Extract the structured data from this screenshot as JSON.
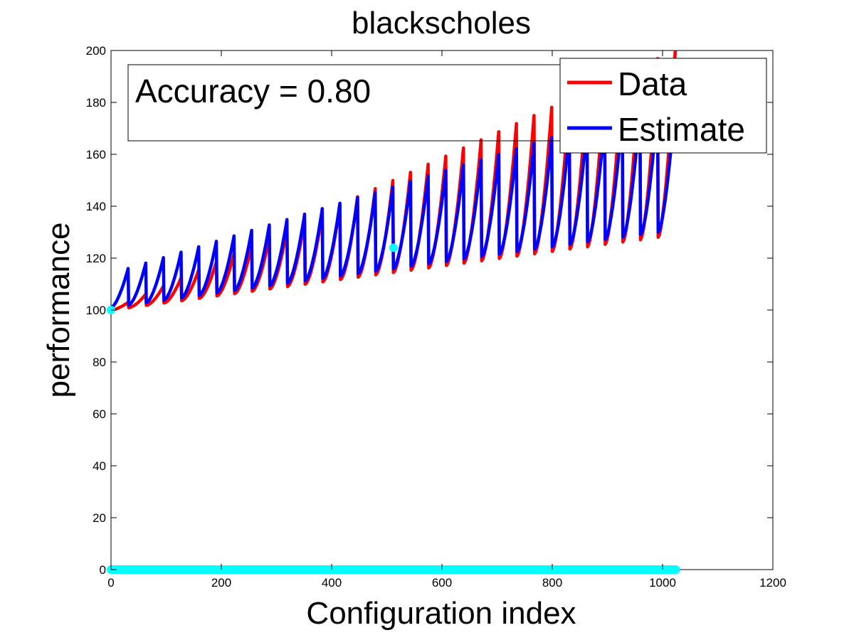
{
  "chart_data": {
    "type": "line",
    "title": "blackscholes",
    "xlabel": "Configuration index",
    "ylabel": "performance",
    "xlim": [
      0,
      1200
    ],
    "ylim": [
      0,
      200
    ],
    "xticks": [
      0,
      200,
      400,
      600,
      800,
      1000,
      1200
    ],
    "yticks": [
      0,
      20,
      40,
      60,
      80,
      100,
      120,
      140,
      160,
      180,
      200
    ],
    "grid": false,
    "legend_position": "top-right",
    "annotation": "Accuracy = 0.80",
    "series": [
      {
        "name": "Data",
        "color": "#ff0000",
        "period": 32,
        "cycle_min_start": 100,
        "cycle_min_end": 128,
        "cycle_max_start": 103,
        "cycle_max_end": 200
      },
      {
        "name": "Estimate",
        "color": "#0000ff",
        "period": 32,
        "cycle_min_start": 101,
        "cycle_min_end": 130,
        "cycle_max_start": 116,
        "cycle_max_end": 181
      },
      {
        "color": "#00ffff",
        "points": [
          [
            0,
            100
          ],
          [
            512,
            124
          ]
        ],
        "baseline_x": [
          0,
          1024
        ],
        "baseline_y": 0
      }
    ]
  }
}
